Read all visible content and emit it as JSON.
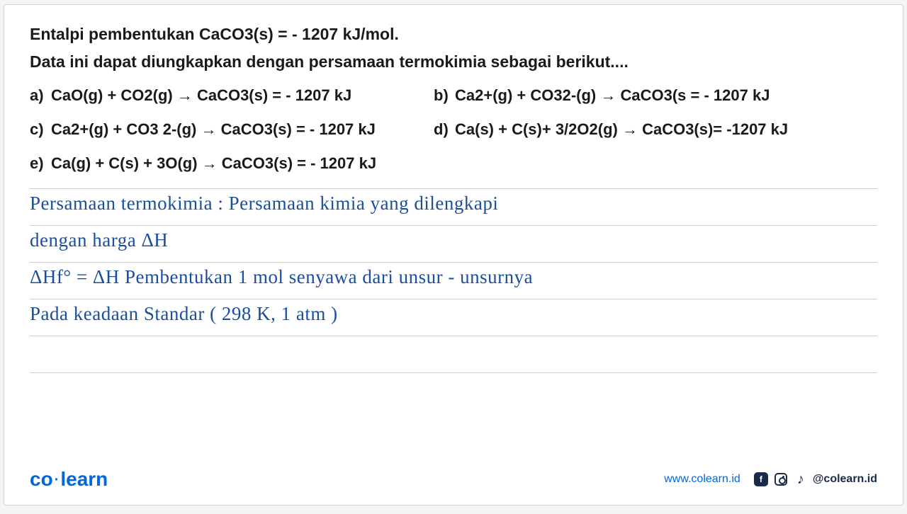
{
  "question": {
    "line1": "Entalpi pembentukan CaCO3(s)  = - 1207 kJ/mol.",
    "line2": "Data ini dapat diungkapkan dengan persamaan   termokimia sebagai berikut...."
  },
  "options": {
    "a": {
      "label": "a)",
      "text": "CaO(g) + CO2(g)  →   CaCO3(s) = - 1207 kJ"
    },
    "b": {
      "label": "b)",
      "text": "Ca2+(g) + CO32-(g)  →  CaCO3(s  = - 1207 kJ"
    },
    "c": {
      "label": "c)",
      "text": "Ca2+(g) + CO3 2-(g) → CaCO3(s) = - 1207 kJ"
    },
    "d": {
      "label": "d)",
      "text": "Ca(s) + C(s)+ 3/2O2(g)  →   CaCO3(s)= -1207 kJ"
    },
    "e": {
      "label": "e)",
      "text": "Ca(g) + C(s) + 3O(g)  →   CaCO3(s) = - 1207 kJ"
    }
  },
  "handwriting": {
    "l1": "Persamaan termokimia : Persamaan kimia yang dilengkapi",
    "l2": "dengan harga ΔH",
    "l3": "ΔHf° = ΔH Pembentukan 1 mol senyawa dari unsur - unsurnya",
    "l4": "Pada keadaan Standar ( 298 K, 1 atm )"
  },
  "footer": {
    "logo_left": "co",
    "logo_right": "learn",
    "website": "www.colearn.id",
    "handle": "@colearn.id"
  },
  "colors": {
    "text": "#1a1a1a",
    "handwriting": "#1a4f9c",
    "rule": "#cfcfcf",
    "brand": "#0066e0",
    "social": "#1a2a4a",
    "background": "#ffffff"
  }
}
